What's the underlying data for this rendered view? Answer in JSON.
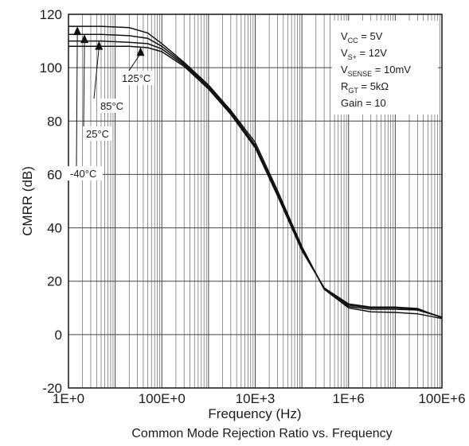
{
  "chart_data": {
    "type": "line",
    "caption": "Common Mode Rejection Ratio vs. Frequency",
    "xlabel": "Frequency (Hz)",
    "ylabel": "CMRR (dB)",
    "x_scale": "log",
    "xlim": [
      1,
      100000000
    ],
    "ylim": [
      -20,
      120
    ],
    "x_tick_values": [
      1,
      100,
      10000,
      1000000,
      100000000
    ],
    "x_tick_labels": [
      "1E+0",
      "100E+0",
      "10E+3",
      "1E+6",
      "100E+6"
    ],
    "y_ticks": [
      -20,
      0,
      20,
      40,
      60,
      80,
      100,
      120
    ],
    "grid": true,
    "conditions": [
      {
        "main": "V",
        "sub": "CC",
        "rest": " = 5V"
      },
      {
        "main": "V",
        "sub": "S+",
        "rest": " = 12V"
      },
      {
        "main": "V",
        "sub": "SENSE",
        "rest": " = 10mV"
      },
      {
        "main": "R",
        "sub": "GT",
        "rest": " = 5kΩ"
      },
      {
        "main": "Gain = 10",
        "sub": "",
        "rest": ""
      }
    ],
    "series": [
      {
        "name": "-40°C",
        "x": [
          1,
          5,
          20,
          50,
          100,
          300,
          1000,
          3000,
          10000,
          30000,
          100000,
          300000,
          1000000,
          3000000,
          10000000,
          30000000,
          100000000
        ],
        "y": [
          115.5,
          115.5,
          115,
          113,
          109,
          102,
          93.5,
          84,
          72,
          54,
          33,
          17,
          10,
          8.5,
          8.3,
          7.8,
          6.0
        ]
      },
      {
        "name": "25°C",
        "x": [
          1,
          5,
          20,
          50,
          100,
          300,
          1000,
          3000,
          10000,
          30000,
          100000,
          300000,
          1000000,
          3000000,
          10000000,
          30000000,
          100000000
        ],
        "y": [
          112.5,
          112.5,
          112,
          111,
          108,
          101.5,
          93,
          83.5,
          71,
          53,
          32.5,
          17,
          10.5,
          9.5,
          9.5,
          9.2,
          6.5
        ]
      },
      {
        "name": "85°C",
        "x": [
          1,
          5,
          20,
          50,
          100,
          300,
          1000,
          3000,
          10000,
          30000,
          100000,
          300000,
          1000000,
          3000000,
          10000000,
          30000000,
          100000000
        ],
        "y": [
          110,
          110,
          109.5,
          109,
          107,
          101,
          92.5,
          83,
          70.5,
          52.5,
          32,
          17.5,
          11,
          10,
          10,
          9.5,
          6.5
        ]
      },
      {
        "name": "125°C",
        "x": [
          1,
          5,
          20,
          50,
          100,
          300,
          1000,
          3000,
          10000,
          30000,
          100000,
          300000,
          1000000,
          3000000,
          10000000,
          30000000,
          100000000
        ],
        "y": [
          108,
          108,
          108,
          107.5,
          106,
          100.5,
          92,
          82.5,
          70,
          52,
          31.5,
          17.5,
          11.5,
          10.3,
          10.3,
          9.8,
          6.3
        ]
      }
    ],
    "callouts": [
      {
        "series": "125°C",
        "text": "125°C"
      },
      {
        "series": "85°C",
        "text": "85°C"
      },
      {
        "series": "25°C",
        "text": "25°C"
      },
      {
        "series": "-40°C",
        "text": "-40°C"
      }
    ]
  }
}
